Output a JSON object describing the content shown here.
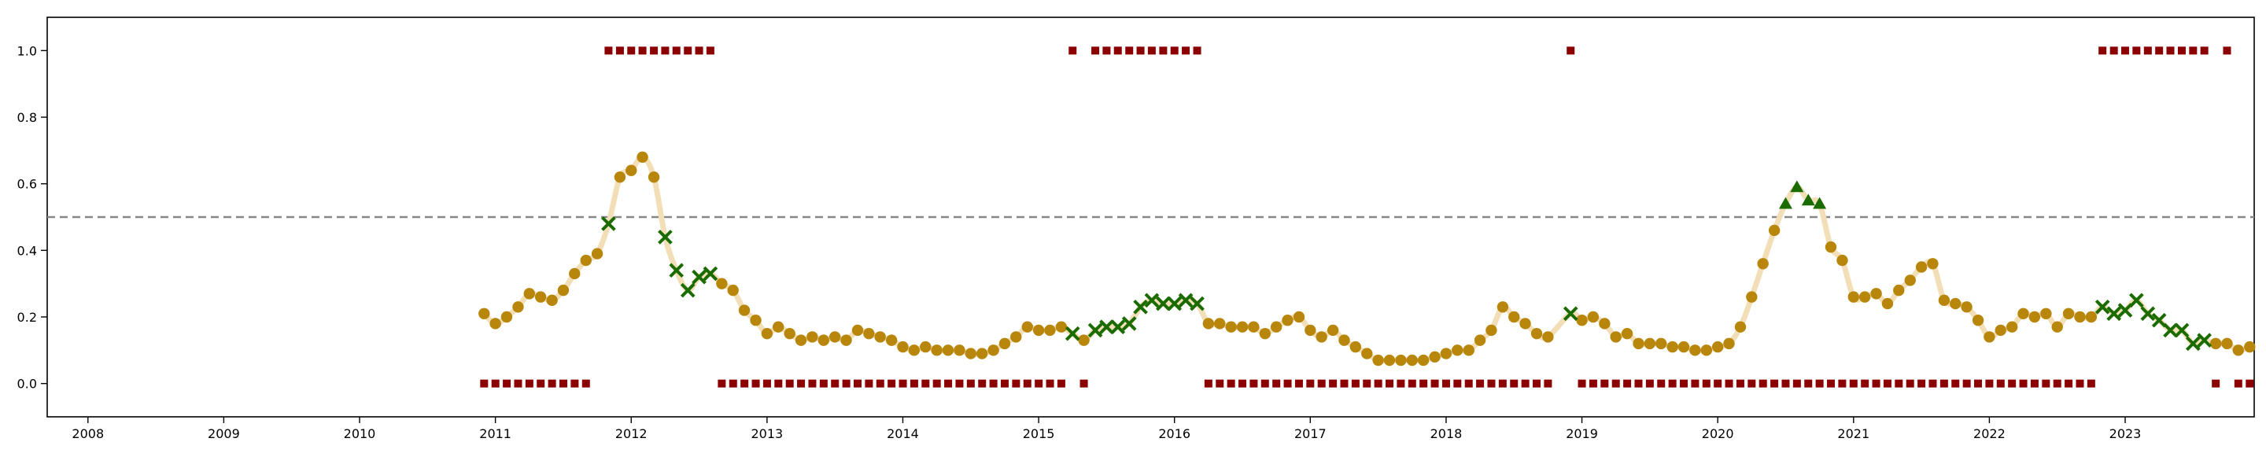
{
  "chart_data": {
    "type": "scatter",
    "title": "",
    "xlabel": "",
    "ylabel": "",
    "xlim": [
      2007.7,
      2023.95
    ],
    "ylim": [
      -0.1,
      1.1
    ],
    "grid": false,
    "legend": "none",
    "x_ticks": [
      "2008",
      "2009",
      "2010",
      "2011",
      "2012",
      "2013",
      "2014",
      "2015",
      "2016",
      "2017",
      "2018",
      "2019",
      "2020",
      "2021",
      "2022",
      "2023"
    ],
    "y_ticks": [
      "0.0",
      "0.2",
      "0.4",
      "0.6",
      "0.8",
      "1.0"
    ],
    "reference_line": {
      "y": 0.5,
      "style": "dashed",
      "color": "#888888"
    },
    "colors": {
      "smooth_line": "#f2dfb8",
      "circle": "#b8860b",
      "cross": "#1a6b00",
      "triangle": "#1a6b00",
      "square": "#8b0000"
    },
    "series": [
      {
        "marker": "circle",
        "points": [
          [
            2010.917,
            0.21
          ],
          [
            2011.0,
            0.18
          ],
          [
            2011.083,
            0.2
          ],
          [
            2011.167,
            0.23
          ],
          [
            2011.25,
            0.27
          ],
          [
            2011.333,
            0.26
          ],
          [
            2011.417,
            0.25
          ],
          [
            2011.5,
            0.28
          ],
          [
            2011.583,
            0.33
          ],
          [
            2011.667,
            0.37
          ],
          [
            2011.75,
            0.39
          ],
          [
            2011.917,
            0.62
          ],
          [
            2012.0,
            0.64
          ],
          [
            2012.083,
            0.68
          ],
          [
            2012.167,
            0.62
          ],
          [
            2012.667,
            0.3
          ],
          [
            2012.75,
            0.28
          ],
          [
            2012.833,
            0.22
          ],
          [
            2012.917,
            0.19
          ],
          [
            2013.0,
            0.15
          ],
          [
            2013.083,
            0.17
          ],
          [
            2013.167,
            0.15
          ],
          [
            2013.25,
            0.13
          ],
          [
            2013.333,
            0.14
          ],
          [
            2013.417,
            0.13
          ],
          [
            2013.5,
            0.14
          ],
          [
            2013.583,
            0.13
          ],
          [
            2013.667,
            0.16
          ],
          [
            2013.75,
            0.15
          ],
          [
            2013.833,
            0.14
          ],
          [
            2013.917,
            0.13
          ],
          [
            2014.0,
            0.11
          ],
          [
            2014.083,
            0.1
          ],
          [
            2014.167,
            0.11
          ],
          [
            2014.25,
            0.1
          ],
          [
            2014.333,
            0.1
          ],
          [
            2014.417,
            0.1
          ],
          [
            2014.5,
            0.09
          ],
          [
            2014.583,
            0.09
          ],
          [
            2014.667,
            0.1
          ],
          [
            2014.75,
            0.12
          ],
          [
            2014.833,
            0.14
          ],
          [
            2014.917,
            0.17
          ],
          [
            2015.0,
            0.16
          ],
          [
            2015.083,
            0.16
          ],
          [
            2015.167,
            0.17
          ],
          [
            2015.333,
            0.13
          ],
          [
            2016.25,
            0.18
          ],
          [
            2016.333,
            0.18
          ],
          [
            2016.417,
            0.17
          ],
          [
            2016.5,
            0.17
          ],
          [
            2016.583,
            0.17
          ],
          [
            2016.667,
            0.15
          ],
          [
            2016.75,
            0.17
          ],
          [
            2016.833,
            0.19
          ],
          [
            2016.917,
            0.2
          ],
          [
            2017.0,
            0.16
          ],
          [
            2017.083,
            0.14
          ],
          [
            2017.167,
            0.16
          ],
          [
            2017.25,
            0.13
          ],
          [
            2017.333,
            0.11
          ],
          [
            2017.417,
            0.09
          ],
          [
            2017.5,
            0.07
          ],
          [
            2017.583,
            0.07
          ],
          [
            2017.667,
            0.07
          ],
          [
            2017.75,
            0.07
          ],
          [
            2017.833,
            0.07
          ],
          [
            2017.917,
            0.08
          ],
          [
            2018.0,
            0.09
          ],
          [
            2018.083,
            0.1
          ],
          [
            2018.167,
            0.1
          ],
          [
            2018.25,
            0.13
          ],
          [
            2018.333,
            0.16
          ],
          [
            2018.417,
            0.23
          ],
          [
            2018.5,
            0.2
          ],
          [
            2018.583,
            0.18
          ],
          [
            2018.667,
            0.15
          ],
          [
            2018.75,
            0.14
          ],
          [
            2019.0,
            0.19
          ],
          [
            2019.083,
            0.2
          ],
          [
            2019.167,
            0.18
          ],
          [
            2019.25,
            0.14
          ],
          [
            2019.333,
            0.15
          ],
          [
            2019.417,
            0.12
          ],
          [
            2019.5,
            0.12
          ],
          [
            2019.583,
            0.12
          ],
          [
            2019.667,
            0.11
          ],
          [
            2019.75,
            0.11
          ],
          [
            2019.833,
            0.1
          ],
          [
            2019.917,
            0.1
          ],
          [
            2020.0,
            0.11
          ],
          [
            2020.083,
            0.12
          ],
          [
            2020.167,
            0.17
          ],
          [
            2020.25,
            0.26
          ],
          [
            2020.333,
            0.36
          ],
          [
            2020.417,
            0.46
          ],
          [
            2020.833,
            0.41
          ],
          [
            2020.917,
            0.37
          ],
          [
            2021.0,
            0.26
          ],
          [
            2021.083,
            0.26
          ],
          [
            2021.167,
            0.27
          ],
          [
            2021.25,
            0.24
          ],
          [
            2021.333,
            0.28
          ],
          [
            2021.417,
            0.31
          ],
          [
            2021.5,
            0.35
          ],
          [
            2021.583,
            0.36
          ],
          [
            2021.667,
            0.25
          ],
          [
            2021.75,
            0.24
          ],
          [
            2021.833,
            0.23
          ],
          [
            2021.917,
            0.19
          ],
          [
            2022.0,
            0.14
          ],
          [
            2022.083,
            0.16
          ],
          [
            2022.167,
            0.17
          ],
          [
            2022.25,
            0.21
          ],
          [
            2022.333,
            0.2
          ],
          [
            2022.417,
            0.21
          ],
          [
            2022.5,
            0.17
          ],
          [
            2022.583,
            0.21
          ],
          [
            2022.667,
            0.2
          ],
          [
            2022.75,
            0.2
          ],
          [
            2023.667,
            0.12
          ],
          [
            2023.75,
            0.12
          ],
          [
            2023.833,
            0.1
          ],
          [
            2023.917,
            0.11
          ]
        ]
      },
      {
        "marker": "cross",
        "points": [
          [
            2011.833,
            0.48
          ],
          [
            2012.25,
            0.44
          ],
          [
            2012.333,
            0.34
          ],
          [
            2012.417,
            0.28
          ],
          [
            2012.5,
            0.32
          ],
          [
            2012.583,
            0.33
          ],
          [
            2015.25,
            0.15
          ],
          [
            2015.417,
            0.16
          ],
          [
            2015.5,
            0.17
          ],
          [
            2015.583,
            0.17
          ],
          [
            2015.667,
            0.18
          ],
          [
            2015.75,
            0.23
          ],
          [
            2015.833,
            0.25
          ],
          [
            2015.917,
            0.24
          ],
          [
            2016.0,
            0.24
          ],
          [
            2016.083,
            0.25
          ],
          [
            2016.167,
            0.24
          ],
          [
            2018.917,
            0.21
          ],
          [
            2022.833,
            0.23
          ],
          [
            2022.917,
            0.21
          ],
          [
            2023.0,
            0.22
          ],
          [
            2023.083,
            0.25
          ],
          [
            2023.167,
            0.21
          ],
          [
            2023.25,
            0.19
          ],
          [
            2023.333,
            0.16
          ],
          [
            2023.417,
            0.16
          ],
          [
            2023.5,
            0.12
          ],
          [
            2023.583,
            0.13
          ]
        ]
      },
      {
        "marker": "triangle",
        "points": [
          [
            2020.5,
            0.54
          ],
          [
            2020.583,
            0.59
          ],
          [
            2020.667,
            0.55
          ],
          [
            2020.75,
            0.54
          ]
        ]
      },
      {
        "marker": "square",
        "points_y1": [
          2011.833,
          2011.917,
          2012.0,
          2012.083,
          2012.167,
          2012.25,
          2012.333,
          2012.417,
          2012.5,
          2012.583,
          2015.25,
          2015.417,
          2015.5,
          2015.583,
          2015.667,
          2015.75,
          2015.833,
          2015.917,
          2016.0,
          2016.083,
          2016.167,
          2018.917,
          2022.833,
          2022.917,
          2023.0,
          2023.083,
          2023.167,
          2023.25,
          2023.333,
          2023.417,
          2023.5,
          2023.583,
          2023.75
        ],
        "points_y0_ranges": [
          [
            2010.917,
            2011.75
          ],
          [
            2012.667,
            2015.167
          ],
          [
            2016.25,
            2018.833
          ],
          [
            2019.0,
            2022.75
          ]
        ],
        "points_y0_single": [
          2015.333,
          2023.667,
          2023.833,
          2023.917
        ]
      }
    ]
  }
}
